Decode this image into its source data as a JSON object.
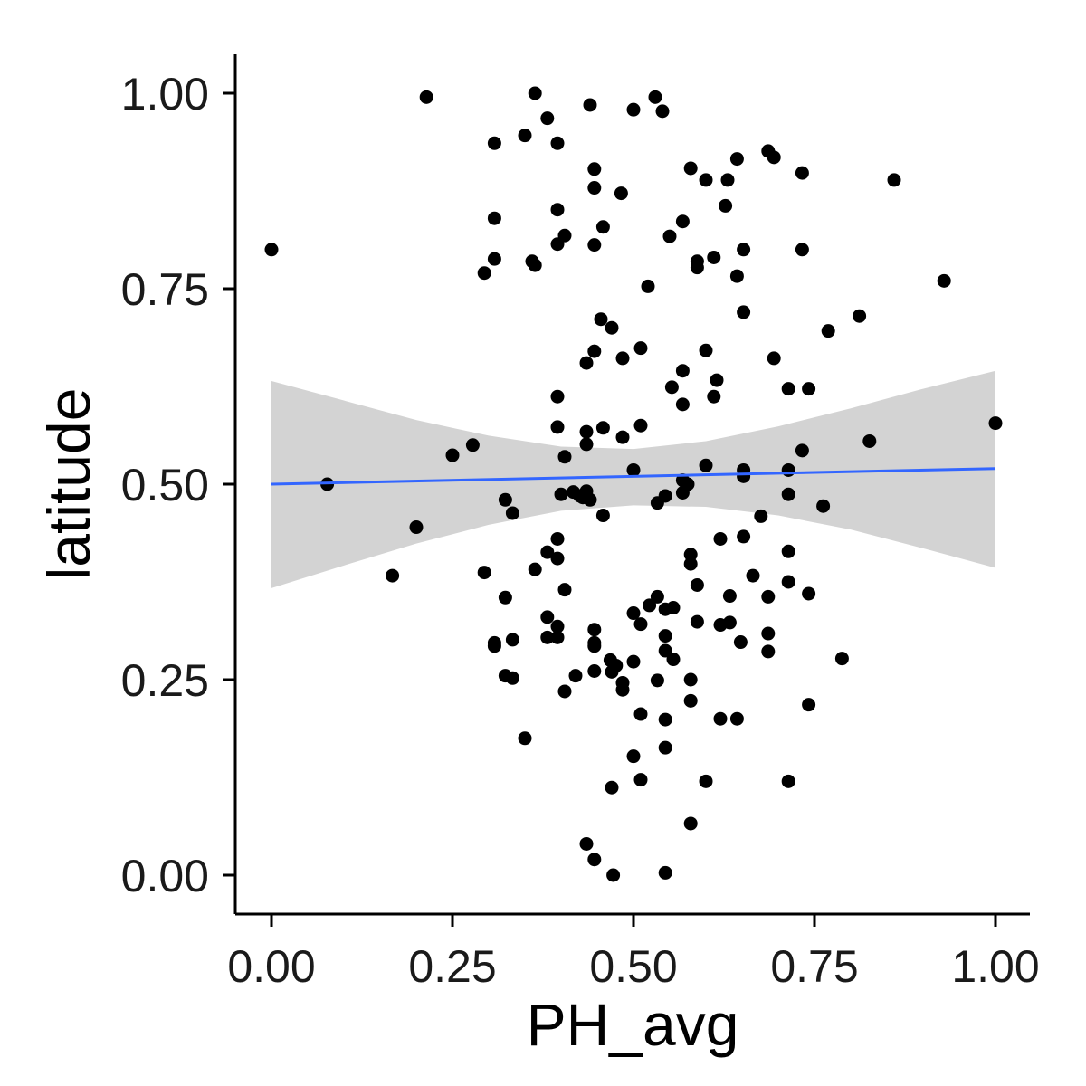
{
  "chart_data": {
    "type": "scatter",
    "title": "",
    "xlabel": "PH_avg",
    "ylabel": "latitude",
    "xlim": [
      -0.05,
      1.05
    ],
    "ylim": [
      -0.05,
      1.05
    ],
    "x_ticks": [
      0,
      0.25,
      0.5,
      0.75,
      1.0
    ],
    "x_tick_labels": [
      "0.00",
      "0.25",
      "0.50",
      "0.75",
      "1.00"
    ],
    "y_ticks": [
      0,
      0.25,
      0.5,
      0.75,
      1.0
    ],
    "y_tick_labels": [
      "0.00",
      "0.25",
      "0.50",
      "0.75",
      "1.00"
    ],
    "grid": false,
    "legend": "none",
    "point_color": "#000000",
    "trend_line": {
      "method": "linear regression with confidence band",
      "color": "#3366ff",
      "band_color": "#d3d3d3",
      "fit": [
        [
          0,
          0.5
        ],
        [
          1,
          0.52
        ]
      ],
      "band": [
        {
          "x": 0.0,
          "low": 0.367,
          "high": 0.632
        },
        {
          "x": 0.1,
          "low": 0.396,
          "high": 0.607
        },
        {
          "x": 0.2,
          "low": 0.424,
          "high": 0.582
        },
        {
          "x": 0.3,
          "low": 0.448,
          "high": 0.562
        },
        {
          "x": 0.4,
          "low": 0.466,
          "high": 0.548
        },
        {
          "x": 0.5,
          "low": 0.473,
          "high": 0.545
        },
        {
          "x": 0.6,
          "low": 0.471,
          "high": 0.555
        },
        {
          "x": 0.7,
          "low": 0.46,
          "high": 0.574
        },
        {
          "x": 0.8,
          "low": 0.442,
          "high": 0.597
        },
        {
          "x": 0.9,
          "low": 0.418,
          "high": 0.622
        },
        {
          "x": 1.0,
          "low": 0.393,
          "high": 0.645
        }
      ]
    },
    "points": [
      [
        0.0,
        0.8
      ],
      [
        0.077,
        0.5
      ],
      [
        0.167,
        0.383
      ],
      [
        0.2,
        0.445
      ],
      [
        0.214,
        0.995
      ],
      [
        0.25,
        0.537
      ],
      [
        0.278,
        0.55
      ],
      [
        0.294,
        0.77
      ],
      [
        0.294,
        0.387
      ],
      [
        0.308,
        0.936
      ],
      [
        0.308,
        0.84
      ],
      [
        0.308,
        0.788
      ],
      [
        0.308,
        0.297
      ],
      [
        0.308,
        0.293
      ],
      [
        0.323,
        0.48
      ],
      [
        0.323,
        0.355
      ],
      [
        0.323,
        0.255
      ],
      [
        0.333,
        0.463
      ],
      [
        0.333,
        0.301
      ],
      [
        0.333,
        0.252
      ],
      [
        0.35,
        0.946
      ],
      [
        0.35,
        0.175
      ],
      [
        0.36,
        0.785
      ],
      [
        0.364,
        1.0
      ],
      [
        0.364,
        0.78
      ],
      [
        0.364,
        0.391
      ],
      [
        0.381,
        0.968
      ],
      [
        0.381,
        0.413
      ],
      [
        0.381,
        0.33
      ],
      [
        0.381,
        0.304
      ],
      [
        0.395,
        0.936
      ],
      [
        0.395,
        0.851
      ],
      [
        0.395,
        0.807
      ],
      [
        0.395,
        0.612
      ],
      [
        0.395,
        0.573
      ],
      [
        0.395,
        0.43
      ],
      [
        0.395,
        0.405
      ],
      [
        0.395,
        0.318
      ],
      [
        0.395,
        0.304
      ],
      [
        0.4,
        0.487
      ],
      [
        0.405,
        0.818
      ],
      [
        0.405,
        0.535
      ],
      [
        0.405,
        0.365
      ],
      [
        0.405,
        0.235
      ],
      [
        0.417,
        0.49
      ],
      [
        0.42,
        0.255
      ],
      [
        0.426,
        0.485
      ],
      [
        0.43,
        0.483
      ],
      [
        0.435,
        0.655
      ],
      [
        0.435,
        0.567
      ],
      [
        0.435,
        0.551
      ],
      [
        0.435,
        0.491
      ],
      [
        0.435,
        0.04
      ],
      [
        0.44,
        0.985
      ],
      [
        0.44,
        0.48
      ],
      [
        0.446,
        0.903
      ],
      [
        0.446,
        0.879
      ],
      [
        0.446,
        0.806
      ],
      [
        0.446,
        0.67
      ],
      [
        0.446,
        0.314
      ],
      [
        0.446,
        0.297
      ],
      [
        0.446,
        0.293
      ],
      [
        0.446,
        0.261
      ],
      [
        0.446,
        0.02
      ],
      [
        0.455,
        0.711
      ],
      [
        0.458,
        0.829
      ],
      [
        0.458,
        0.572
      ],
      [
        0.458,
        0.46
      ],
      [
        0.468,
        0.275
      ],
      [
        0.47,
        0.7
      ],
      [
        0.47,
        0.26
      ],
      [
        0.47,
        0.112
      ],
      [
        0.472,
        0.0
      ],
      [
        0.476,
        0.268
      ],
      [
        0.483,
        0.872
      ],
      [
        0.485,
        0.661
      ],
      [
        0.485,
        0.56
      ],
      [
        0.485,
        0.246
      ],
      [
        0.485,
        0.237
      ],
      [
        0.5,
        0.979
      ],
      [
        0.5,
        0.518
      ],
      [
        0.5,
        0.335
      ],
      [
        0.5,
        0.273
      ],
      [
        0.5,
        0.152
      ],
      [
        0.51,
        0.674
      ],
      [
        0.51,
        0.575
      ],
      [
        0.51,
        0.321
      ],
      [
        0.51,
        0.206
      ],
      [
        0.51,
        0.122
      ],
      [
        0.52,
        0.753
      ],
      [
        0.522,
        0.345
      ],
      [
        0.53,
        0.995
      ],
      [
        0.533,
        0.476
      ],
      [
        0.533,
        0.356
      ],
      [
        0.533,
        0.249
      ],
      [
        0.54,
        0.977
      ],
      [
        0.544,
        0.485
      ],
      [
        0.544,
        0.34
      ],
      [
        0.544,
        0.306
      ],
      [
        0.544,
        0.287
      ],
      [
        0.544,
        0.199
      ],
      [
        0.544,
        0.163
      ],
      [
        0.544,
        0.003
      ],
      [
        0.55,
        0.817
      ],
      [
        0.553,
        0.624
      ],
      [
        0.555,
        0.342
      ],
      [
        0.555,
        0.276
      ],
      [
        0.568,
        0.836
      ],
      [
        0.568,
        0.645
      ],
      [
        0.568,
        0.602
      ],
      [
        0.568,
        0.505
      ],
      [
        0.568,
        0.489
      ],
      [
        0.575,
        0.5
      ],
      [
        0.579,
        0.904
      ],
      [
        0.579,
        0.41
      ],
      [
        0.579,
        0.398
      ],
      [
        0.579,
        0.25
      ],
      [
        0.579,
        0.223
      ],
      [
        0.579,
        0.066
      ],
      [
        0.588,
        0.777
      ],
      [
        0.588,
        0.785
      ],
      [
        0.588,
        0.371
      ],
      [
        0.588,
        0.324
      ],
      [
        0.6,
        0.889
      ],
      [
        0.6,
        0.671
      ],
      [
        0.6,
        0.524
      ],
      [
        0.6,
        0.12
      ],
      [
        0.611,
        0.79
      ],
      [
        0.611,
        0.612
      ],
      [
        0.615,
        0.633
      ],
      [
        0.62,
        0.43
      ],
      [
        0.62,
        0.32
      ],
      [
        0.62,
        0.2
      ],
      [
        0.627,
        0.856
      ],
      [
        0.63,
        0.889
      ],
      [
        0.633,
        0.357
      ],
      [
        0.633,
        0.323
      ],
      [
        0.643,
        0.916
      ],
      [
        0.643,
        0.766
      ],
      [
        0.643,
        0.2
      ],
      [
        0.648,
        0.298
      ],
      [
        0.652,
        0.8
      ],
      [
        0.652,
        0.72
      ],
      [
        0.652,
        0.518
      ],
      [
        0.652,
        0.51
      ],
      [
        0.652,
        0.433
      ],
      [
        0.665,
        0.383
      ],
      [
        0.676,
        0.459
      ],
      [
        0.686,
        0.926
      ],
      [
        0.686,
        0.356
      ],
      [
        0.686,
        0.309
      ],
      [
        0.686,
        0.286
      ],
      [
        0.694,
        0.918
      ],
      [
        0.694,
        0.661
      ],
      [
        0.714,
        0.622
      ],
      [
        0.714,
        0.518
      ],
      [
        0.714,
        0.487
      ],
      [
        0.714,
        0.414
      ],
      [
        0.714,
        0.375
      ],
      [
        0.714,
        0.12
      ],
      [
        0.733,
        0.898
      ],
      [
        0.733,
        0.8
      ],
      [
        0.733,
        0.543
      ],
      [
        0.742,
        0.622
      ],
      [
        0.742,
        0.36
      ],
      [
        0.742,
        0.218
      ],
      [
        0.762,
        0.472
      ],
      [
        0.769,
        0.696
      ],
      [
        0.788,
        0.277
      ],
      [
        0.812,
        0.715
      ],
      [
        0.826,
        0.555
      ],
      [
        0.86,
        0.889
      ],
      [
        0.929,
        0.76
      ],
      [
        1.0,
        0.578
      ]
    ]
  }
}
